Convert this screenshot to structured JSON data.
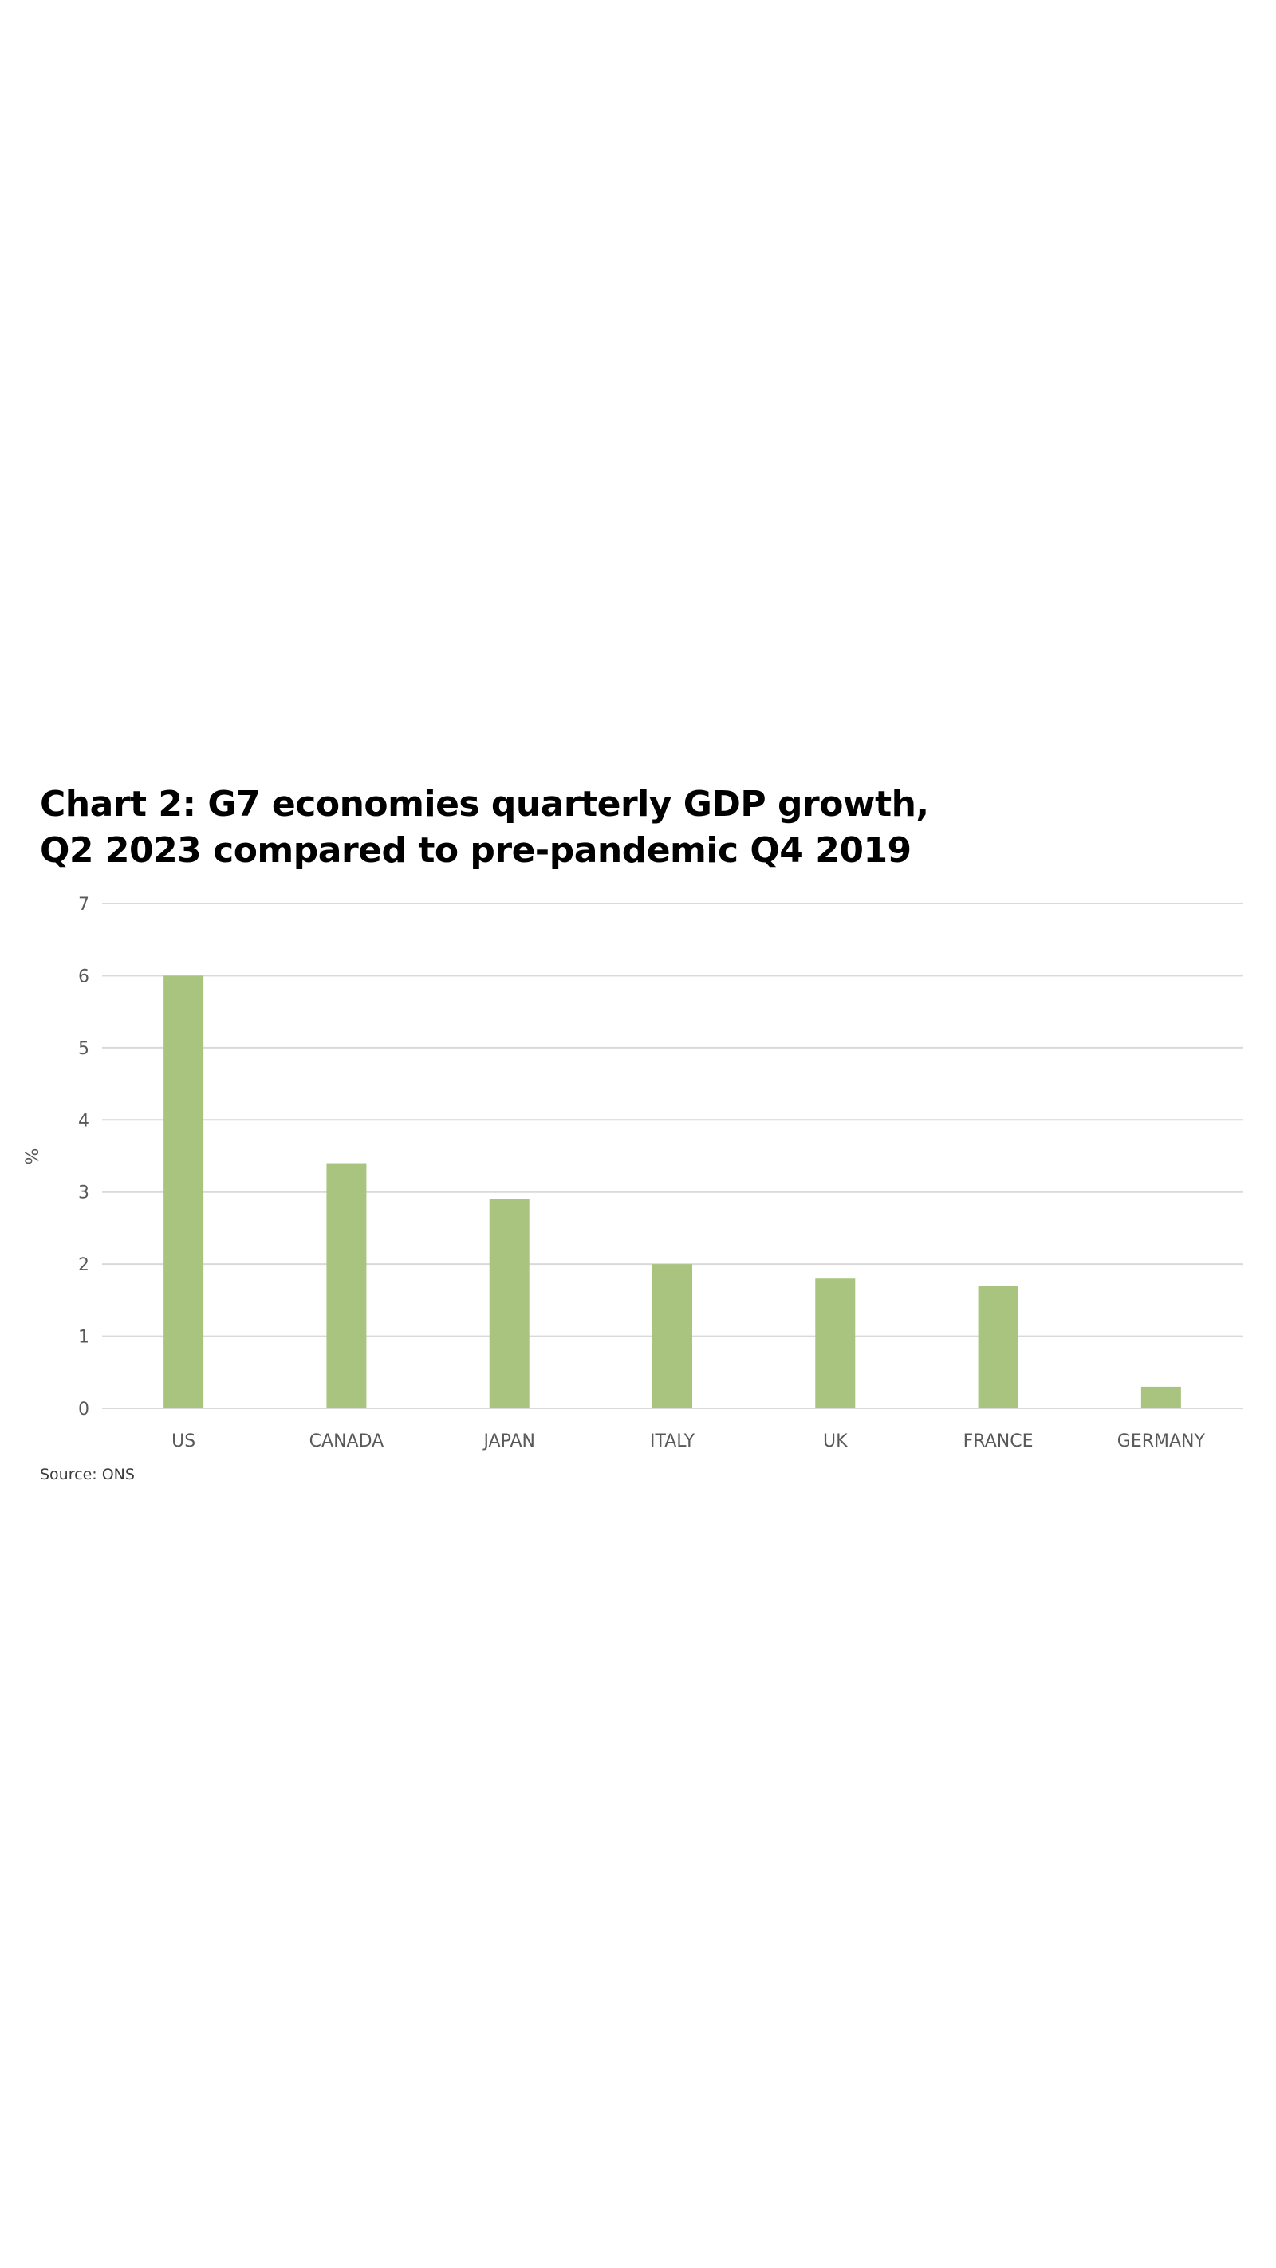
{
  "chart_data": {
    "type": "bar",
    "title": "Chart 2: G7 economies quarterly GDP growth, Q2 2023 compared to pre-pandemic Q4 2019",
    "title_lines": [
      "Chart 2: G7 economies quarterly GDP growth,",
      "Q2 2023 compared to pre-pandemic Q4 2019"
    ],
    "categories": [
      "US",
      "CANADA",
      "JAPAN",
      "ITALY",
      "UK",
      "FRANCE",
      "GERMANY"
    ],
    "values": [
      6.0,
      3.4,
      2.9,
      2.0,
      1.8,
      1.7,
      0.3
    ],
    "xlabel": "",
    "ylabel": "%",
    "ylim": [
      0,
      7
    ],
    "yticks": [
      0,
      1,
      2,
      3,
      4,
      5,
      6,
      7
    ],
    "grid": true,
    "legend": "none",
    "bar_color": "#a9c47f",
    "grid_color": "#d9d9d9",
    "source": "Source: ONS"
  }
}
